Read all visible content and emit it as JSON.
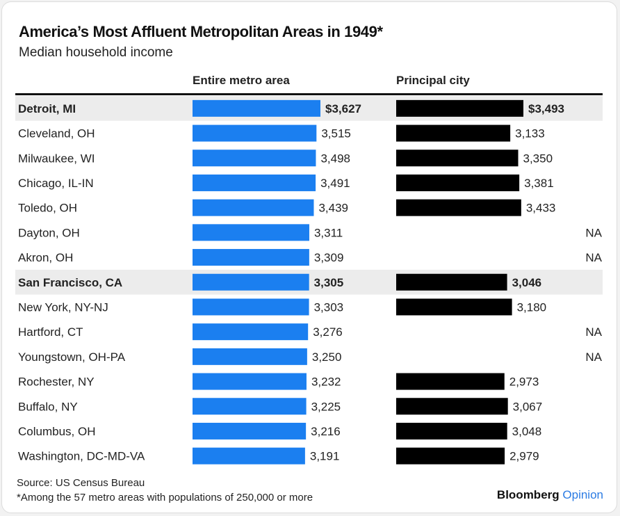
{
  "title": "America’s Most Affluent Metropolitan Areas in 1949*",
  "subtitle": "Median household income",
  "columns": {
    "metro": "Entire metro area",
    "city": "Principal city"
  },
  "footer": {
    "source": "Source: US Census Bureau",
    "note": "*Among the 57 metro areas with populations of 250,000 or more"
  },
  "brand": {
    "name": "Bloomberg",
    "sub": "Opinion"
  },
  "colors": {
    "metro_bar": "#1b7ff0",
    "city_bar": "#000000",
    "highlight_row": "#ececec"
  },
  "chart_data": {
    "type": "bar",
    "title": "America’s Most Affluent Metropolitan Areas in 1949*",
    "subtitle": "Median household income",
    "categories": [
      "Detroit, MI",
      "Cleveland, OH",
      "Milwaukee, WI",
      "Chicago, IL-IN",
      "Toledo, OH",
      "Dayton, OH",
      "Akron, OH",
      "San Francisco, CA",
      "New York, NY-NJ",
      "Hartford, CT",
      "Youngstown, OH-PA",
      "Rochester, NY",
      "Buffalo, NY",
      "Columbus, OH",
      "Washington, DC-MD-VA"
    ],
    "highlighted": [
      "Detroit, MI",
      "San Francisco, CA"
    ],
    "series": [
      {
        "name": "Entire metro area",
        "values": [
          3627,
          3515,
          3498,
          3491,
          3439,
          3311,
          3309,
          3305,
          3303,
          3276,
          3250,
          3232,
          3225,
          3216,
          3191
        ],
        "labels": [
          "$3,627",
          "3,515",
          "3,498",
          "3,491",
          "3,439",
          "3,311",
          "3,309",
          "3,305",
          "3,303",
          "3,276",
          "3,250",
          "3,232",
          "3,225",
          "3,216",
          "3,191"
        ]
      },
      {
        "name": "Principal city",
        "values": [
          3493,
          3133,
          3350,
          3381,
          3433,
          null,
          null,
          3046,
          3180,
          null,
          null,
          2973,
          3067,
          3048,
          2979
        ],
        "labels": [
          "$3,493",
          "3,133",
          "3,350",
          "3,381",
          "3,433",
          "NA",
          "NA",
          "3,046",
          "3,180",
          "NA",
          "NA",
          "2,973",
          "3,067",
          "3,048",
          "2,979"
        ]
      }
    ]
  }
}
